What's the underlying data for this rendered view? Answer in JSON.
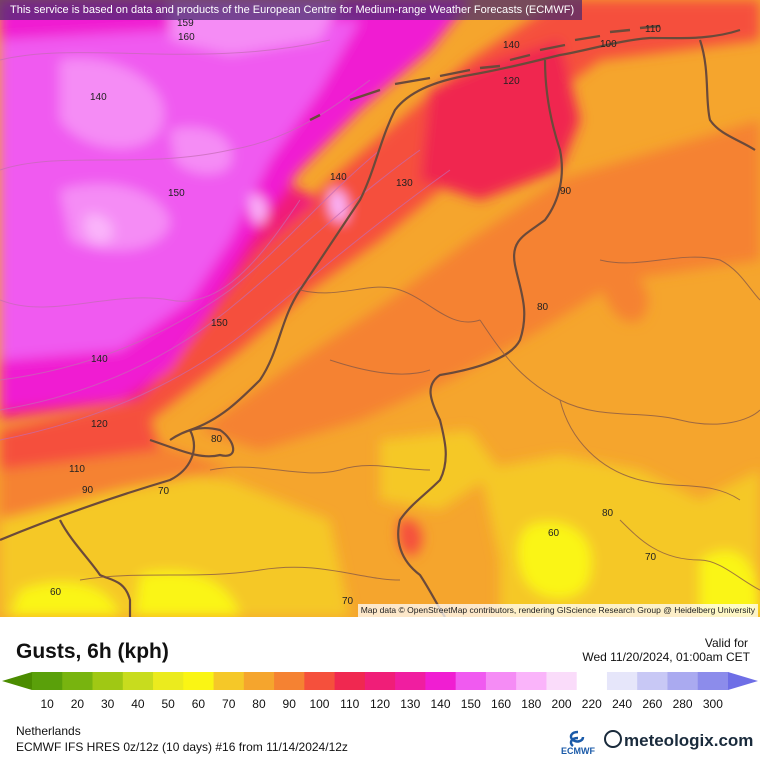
{
  "top_notice": "This service is based on data and products of the European Centre for Medium-range Weather Forecasts (ECMWF)",
  "map_attribution": "Map data © OpenStreetMap contributors, rendering GIScience Research Group @ Heidelberg University",
  "legend": {
    "title": "Gusts, 6h (kph)",
    "valid_label": "Valid for",
    "valid_date": "Wed 11/20/2024, 01:00am CET",
    "scale": [
      {
        "value": "10",
        "color": "#5aa00a"
      },
      {
        "value": "20",
        "color": "#78b40f"
      },
      {
        "value": "30",
        "color": "#a0c814"
      },
      {
        "value": "40",
        "color": "#c8dc1e"
      },
      {
        "value": "50",
        "color": "#ebeb1e"
      },
      {
        "value": "60",
        "color": "#faf514"
      },
      {
        "value": "70",
        "color": "#f5c828"
      },
      {
        "value": "80",
        "color": "#f5a52d"
      },
      {
        "value": "90",
        "color": "#f58232"
      },
      {
        "value": "100",
        "color": "#f5503c"
      },
      {
        "value": "110",
        "color": "#f02850"
      },
      {
        "value": "120",
        "color": "#f01e78"
      },
      {
        "value": "130",
        "color": "#f01ea0"
      },
      {
        "value": "140",
        "color": "#f01ed2"
      },
      {
        "value": "150",
        "color": "#f05af0"
      },
      {
        "value": "160",
        "color": "#f58cf5"
      },
      {
        "value": "180",
        "color": "#fab4fa"
      },
      {
        "value": "200",
        "color": "#fadcfa"
      },
      {
        "value": "220",
        "color": "#ffffff"
      },
      {
        "value": "240",
        "color": "#e6e6fa"
      },
      {
        "value": "260",
        "color": "#c8c8f5"
      },
      {
        "value": "280",
        "color": "#aaaaf0"
      },
      {
        "value": "300",
        "color": "#8c8ceb"
      }
    ],
    "low_arrow_color": "#4b8c00",
    "high_arrow_color": "#6e6ee6"
  },
  "region": "Netherlands",
  "model_info": "ECMWF IFS HRES 0z/12z (10 days) #16 from  11/14/2024/12z",
  "ecmwf_logo_text": "ECMWF",
  "brand": "meteologix.com",
  "contour_labels": [
    "159",
    "160",
    "140",
    "140",
    "100",
    "110",
    "120",
    "150",
    "140",
    "130",
    "90",
    "150",
    "80",
    "140",
    "120",
    "110",
    "90",
    "70",
    "80",
    "80",
    "60",
    "70",
    "60",
    "70"
  ]
}
